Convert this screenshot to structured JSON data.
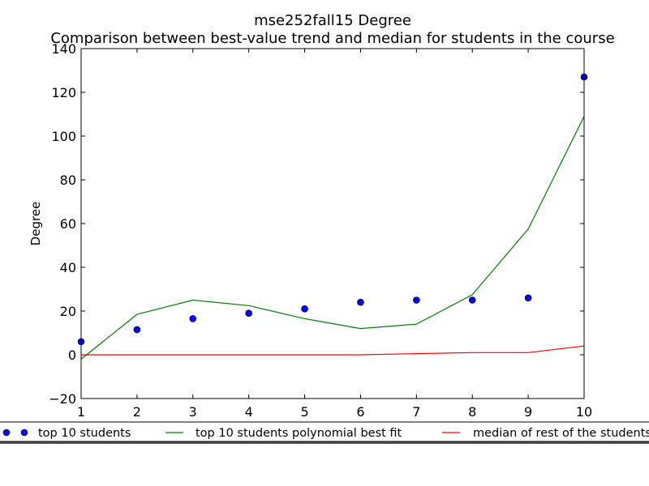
{
  "chart_data": {
    "type": "line",
    "title": "mse252fall15 Degree",
    "subtitle": "Comparison between best-value trend and median for students in the course",
    "xlabel": "",
    "ylabel": "Degree",
    "xlim": [
      1,
      10
    ],
    "ylim": [
      -20,
      140
    ],
    "x_ticks": [
      1,
      2,
      3,
      4,
      5,
      6,
      7,
      8,
      9,
      10
    ],
    "y_ticks": [
      -20,
      0,
      20,
      40,
      60,
      80,
      100,
      120,
      140
    ],
    "grid": false,
    "legend_placement": "bottom",
    "x": [
      1,
      2,
      3,
      4,
      5,
      6,
      7,
      8,
      9,
      10
    ],
    "series": [
      {
        "name": "top 10 students",
        "style": "markers",
        "color": "#0000ff",
        "values": [
          6,
          11.5,
          16.5,
          19,
          21,
          24,
          25,
          25,
          26,
          127
        ]
      },
      {
        "name": "top 10 students polynomial best fit",
        "style": "line",
        "color": "#008000",
        "values": [
          -2,
          18.5,
          25,
          22.5,
          16.5,
          12,
          14,
          27.5,
          57.5,
          109
        ]
      },
      {
        "name": "median of rest of the students",
        "style": "line",
        "color": "#ff0000",
        "values": [
          0,
          0,
          0,
          0,
          0,
          0,
          0.5,
          1,
          1,
          4
        ]
      }
    ]
  }
}
